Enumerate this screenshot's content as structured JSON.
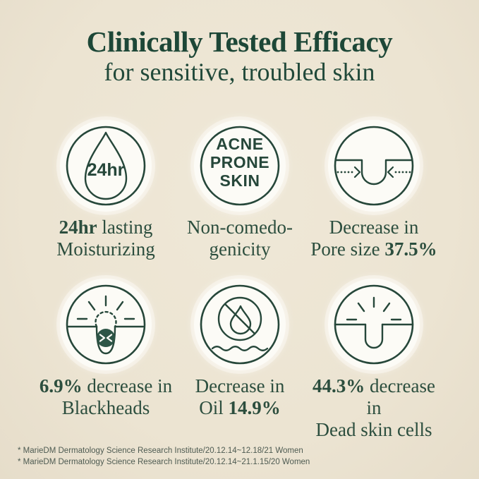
{
  "header": {
    "title": "Clinically Tested Efficacy",
    "subtitle": "for sensitive, troubled skin"
  },
  "features": [
    {
      "id": "moisturizing",
      "icon": "water-drop-24hr-icon",
      "icon_text": "24hr",
      "lines": [
        [
          {
            "text": "24hr",
            "bold": true
          },
          {
            "text": " lasting",
            "bold": false
          }
        ],
        [
          {
            "text": "Moisturizing",
            "bold": false
          }
        ]
      ]
    },
    {
      "id": "noncomedogenic",
      "icon": "acne-prone-skin-badge-icon",
      "icon_lines": [
        "ACNE",
        "PRONE",
        "SKIN"
      ],
      "lines": [
        [
          {
            "text": "Non-comedo-",
            "bold": false
          }
        ],
        [
          {
            "text": "genicity",
            "bold": false
          }
        ]
      ]
    },
    {
      "id": "pore",
      "icon": "pore-size-shrink-icon",
      "lines": [
        [
          {
            "text": "Decrease in",
            "bold": false
          }
        ],
        [
          {
            "text": "Pore size ",
            "bold": false
          },
          {
            "text": "37.5%",
            "bold": true
          }
        ]
      ]
    },
    {
      "id": "blackhead",
      "icon": "blackhead-extraction-icon",
      "lines": [
        [
          {
            "text": "6.9%",
            "bold": true
          },
          {
            "text": " decrease in",
            "bold": false
          }
        ],
        [
          {
            "text": "Blackheads",
            "bold": false
          }
        ]
      ]
    },
    {
      "id": "oil",
      "icon": "no-oil-drop-icon",
      "lines": [
        [
          {
            "text": "Decrease in",
            "bold": false
          }
        ],
        [
          {
            "text": "Oil ",
            "bold": false
          },
          {
            "text": "14.9%",
            "bold": true
          }
        ]
      ]
    },
    {
      "id": "deadskin",
      "icon": "clean-pore-dead-skin-icon",
      "lines": [
        [
          {
            "text": "44.3%",
            "bold": true
          },
          {
            "text": " decrease in",
            "bold": false
          }
        ],
        [
          {
            "text": "Dead skin cells",
            "bold": false
          }
        ]
      ]
    }
  ],
  "footnotes": [
    "* MarieDM Dermatology Science Research Institute/20.12.14~12.18/21 Women",
    "* MarieDM Dermatology Science Research Institute/20.12.14~21.1.15/20 Women"
  ],
  "colors": {
    "background": "#ece4d2",
    "title_green": "#1d4737",
    "icon_stroke": "#26473a",
    "label_green": "#2c4e3e",
    "footnote_gray": "#4e5b52",
    "circle_white": "#fcfbf6",
    "blackhead_fill": "#2d5546"
  }
}
